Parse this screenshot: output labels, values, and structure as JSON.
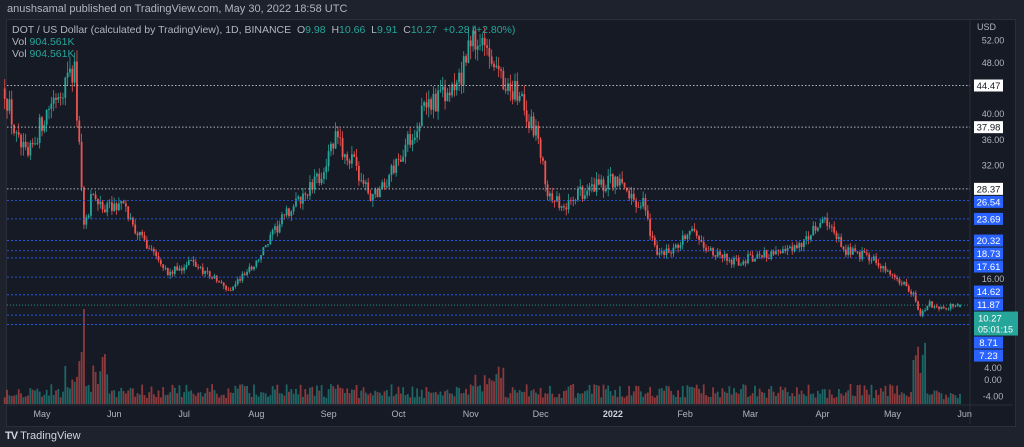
{
  "publisher_line": "anushsamal published on TradingView.com, May 30, 2022 18:58 UTC",
  "legend": {
    "symbol": "DOT / US Dollar (calculated by TradingView), 1D, BINANCE",
    "o_label": "O",
    "o": "9.98",
    "h_label": "H",
    "h": "10.66",
    "l_label": "L",
    "l": "9.91",
    "c_label": "C",
    "c": "10.27",
    "change": "+0.28 (+2.80%)",
    "vol_rows": [
      {
        "label": "Vol",
        "value": "904.561K"
      },
      {
        "label": "Vol",
        "value": "904.561K"
      }
    ]
  },
  "footer": {
    "logo_text": "TradingView"
  },
  "colors": {
    "up": "#26a69a",
    "down": "#ef5350",
    "level": "#2962ff",
    "bg": "#161a25"
  },
  "chart_data": {
    "type": "candlestick",
    "title": "DOT / US Dollar, 1D, BINANCE",
    "currency_label": "USD",
    "start_date": "2021-04-15",
    "end_date": "2022-05-30",
    "ylim": [
      -5,
      54
    ],
    "y_ticks": [
      "52.00",
      "48.00",
      "40.00",
      "36.00",
      "32.00",
      "16.00",
      "4.00",
      "0.00",
      "-4.00"
    ],
    "y_tick_values": [
      52,
      48,
      40,
      36,
      32,
      16,
      4,
      0,
      -4
    ],
    "x_ticks": [
      {
        "label": "May",
        "day": 16
      },
      {
        "label": "Jun",
        "day": 47
      },
      {
        "label": "Jul",
        "day": 77
      },
      {
        "label": "Aug",
        "day": 108
      },
      {
        "label": "Sep",
        "day": 139
      },
      {
        "label": "Oct",
        "day": 169
      },
      {
        "label": "Nov",
        "day": 200
      },
      {
        "label": "Dec",
        "day": 230
      },
      {
        "label": "2022",
        "day": 261
      },
      {
        "label": "Feb",
        "day": 292
      },
      {
        "label": "Mar",
        "day": 320
      },
      {
        "label": "Apr",
        "day": 351
      },
      {
        "label": "May",
        "day": 381
      },
      {
        "label": "Jun",
        "day": 412
      }
    ],
    "close_path": [
      [
        0,
        44
      ],
      [
        5,
        36
      ],
      [
        10,
        33
      ],
      [
        15,
        38
      ],
      [
        20,
        42
      ],
      [
        30,
        47
      ],
      [
        34,
        22
      ],
      [
        38,
        28
      ],
      [
        42,
        25
      ],
      [
        50,
        26
      ],
      [
        58,
        21
      ],
      [
        66,
        18
      ],
      [
        70,
        15
      ],
      [
        80,
        17
      ],
      [
        88,
        15
      ],
      [
        96,
        12.5
      ],
      [
        108,
        17
      ],
      [
        120,
        24
      ],
      [
        135,
        30
      ],
      [
        142,
        36
      ],
      [
        150,
        32
      ],
      [
        157,
        27
      ],
      [
        163,
        29
      ],
      [
        172,
        35
      ],
      [
        182,
        42
      ],
      [
        192,
        43
      ],
      [
        203,
        53
      ],
      [
        208,
        50
      ],
      [
        215,
        45
      ],
      [
        222,
        42
      ],
      [
        228,
        37
      ],
      [
        233,
        28
      ],
      [
        240,
        25
      ],
      [
        248,
        28
      ],
      [
        255,
        29
      ],
      [
        262,
        30
      ],
      [
        268,
        27
      ],
      [
        274,
        26
      ],
      [
        280,
        18
      ],
      [
        288,
        19
      ],
      [
        295,
        22
      ],
      [
        305,
        18
      ],
      [
        315,
        17
      ],
      [
        325,
        18
      ],
      [
        338,
        19
      ],
      [
        348,
        22
      ],
      [
        352,
        23
      ],
      [
        360,
        19
      ],
      [
        368,
        18
      ],
      [
        375,
        17
      ],
      [
        385,
        14
      ],
      [
        390,
        12
      ],
      [
        393,
        8.5
      ],
      [
        396,
        10.5
      ],
      [
        402,
        10
      ],
      [
        410,
        10.27
      ]
    ],
    "levels": [
      {
        "value": "44.47",
        "style": "dotted-white"
      },
      {
        "value": "37.98",
        "style": "dotted-white"
      },
      {
        "value": "28.37",
        "style": "dotted-white"
      },
      {
        "value": "26.54",
        "style": "blue"
      },
      {
        "value": "23.69",
        "style": "blue"
      },
      {
        "value": "20.32",
        "style": "blue"
      },
      {
        "value": "18.73",
        "style": "blue"
      },
      {
        "value": "17.61",
        "style": "blue"
      },
      {
        "value": "14.62",
        "style": "blue"
      },
      {
        "value": "11.87",
        "style": "blue"
      },
      {
        "value": "8.71",
        "style": "blue"
      },
      {
        "value": "7.23",
        "style": "blue"
      }
    ],
    "last_price": {
      "value": "10.27",
      "countdown": "05:01:15"
    },
    "volume_last": "904.561K"
  }
}
